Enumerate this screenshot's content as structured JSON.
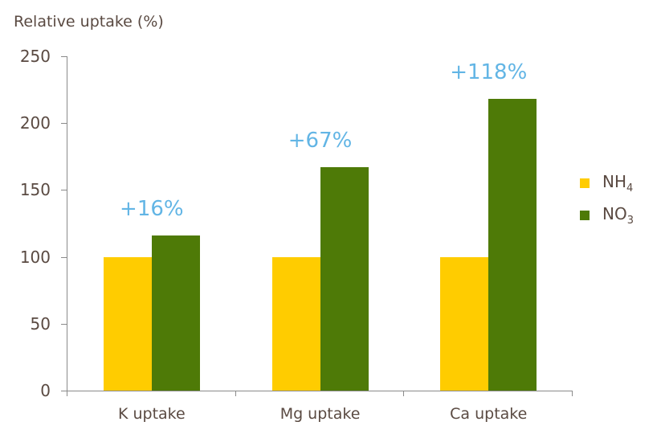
{
  "chart_data": {
    "type": "bar",
    "title": "",
    "ylabel": "Relative uptake (%)",
    "xlabel": "",
    "ylim": [
      0,
      250
    ],
    "yticks": [
      0,
      50,
      100,
      150,
      200,
      250
    ],
    "grid": false,
    "legend_position": "right",
    "categories": [
      "K uptake",
      "Mg uptake",
      "Ca uptake"
    ],
    "series": [
      {
        "name": "NH4",
        "label_base": "NH",
        "label_sub": "4",
        "color": "#ffcc00",
        "values": [
          100,
          100,
          100
        ]
      },
      {
        "name": "NO3",
        "label_base": "NO",
        "label_sub": "3",
        "color": "#4e7a07",
        "values": [
          116,
          167,
          218
        ]
      }
    ],
    "annotations": [
      {
        "category": "K uptake",
        "text": "+16%"
      },
      {
        "category": "Mg uptake",
        "text": "+67%"
      },
      {
        "category": "Ca uptake",
        "text": "+118%"
      }
    ],
    "annotation_color": "#62b5e5"
  },
  "axis": {
    "ylabel": "Relative uptake (%)",
    "yticks": [
      "250",
      "200",
      "150",
      "100",
      "50",
      "0"
    ]
  },
  "legend": {
    "nh4_base": "NH",
    "nh4_sub": "4",
    "no3_base": "NO",
    "no3_sub": "3"
  }
}
